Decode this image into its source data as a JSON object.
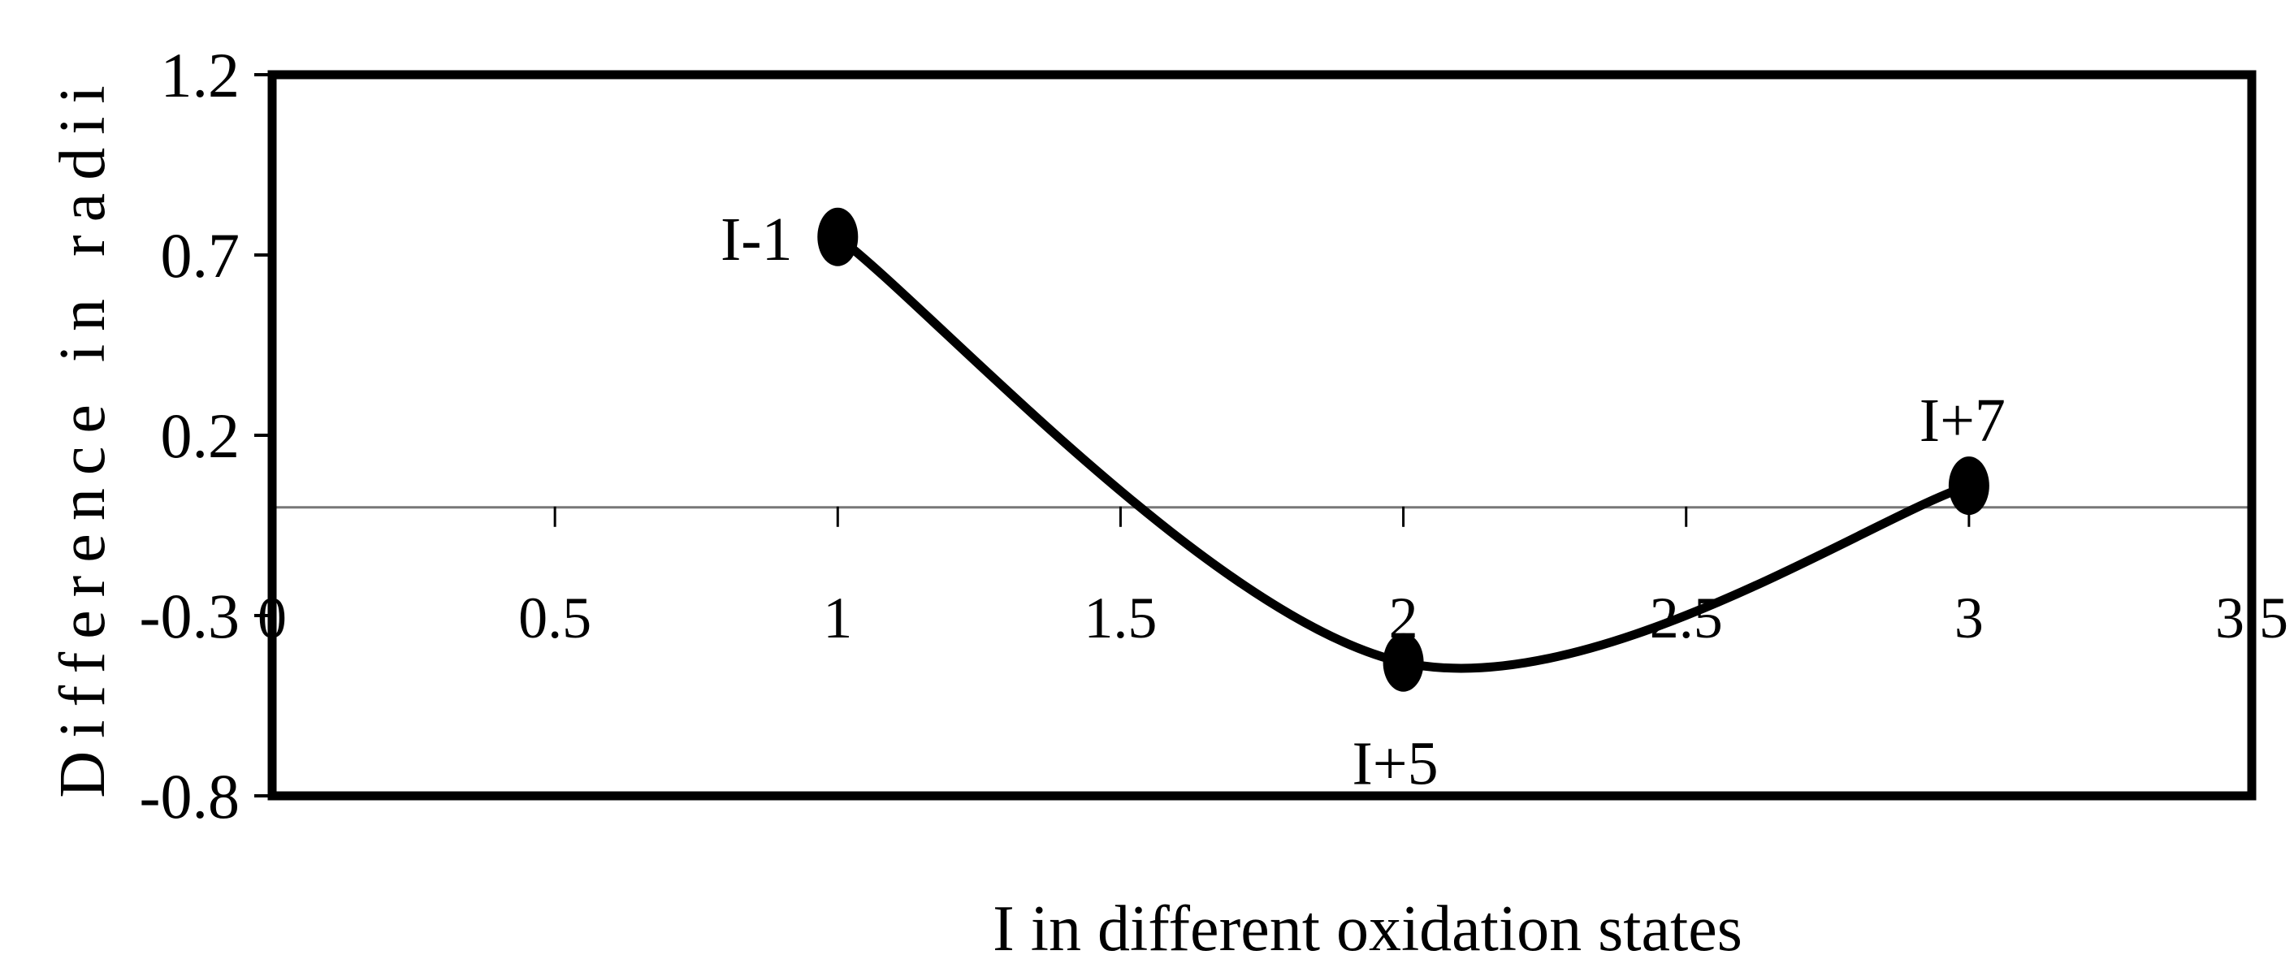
{
  "chart_data": {
    "type": "line",
    "title": "",
    "xlabel": "I in different oxidation states",
    "ylabel": "Difference in radii",
    "xlim": [
      0,
      3.5
    ],
    "ylim": [
      -0.8,
      1.2
    ],
    "x_ticks": [
      "0",
      "0.5",
      "1",
      "1.5",
      "2",
      "2.5",
      "3",
      "3.5"
    ],
    "y_ticks": [
      "1.2",
      "0.7",
      "0.2",
      "-0.3",
      "-0.8"
    ],
    "smooth": true,
    "grid": false,
    "legend": "none",
    "series": [
      {
        "points": [
          {
            "label": "I-1",
            "x": 1,
            "y": 0.75
          },
          {
            "label": "I+5",
            "x": 2,
            "y": -0.43
          },
          {
            "label": "I+7",
            "x": 3,
            "y": 0.06
          }
        ]
      }
    ],
    "colors": {
      "line": "#000000",
      "marker": "#000000",
      "frame": "#000000",
      "zero_line": "#777777"
    }
  }
}
